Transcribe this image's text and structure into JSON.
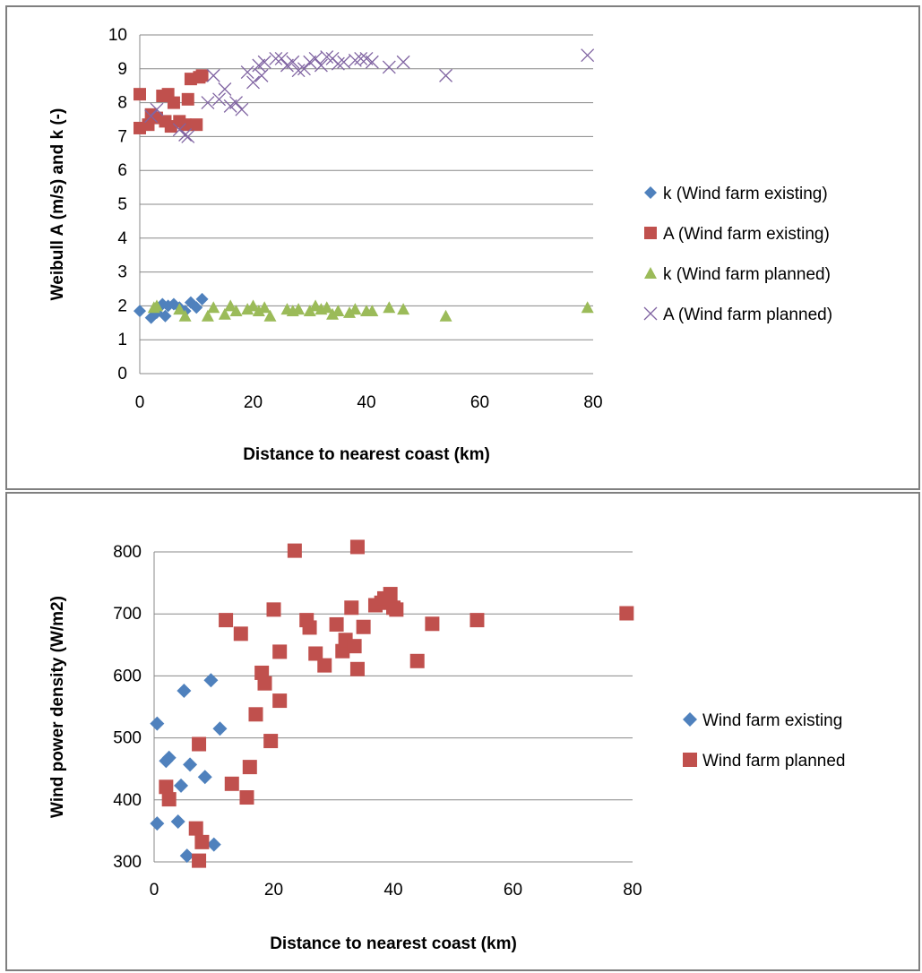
{
  "chart_data": [
    {
      "type": "scatter",
      "title": "",
      "xlabel": "Distance to nearest coast (km)",
      "ylabel": "Weibull A (m/s) and k (-)",
      "xlim": [
        0,
        80
      ],
      "ylim": [
        0,
        10
      ],
      "xticks": [
        "0",
        "20",
        "40",
        "60",
        "80"
      ],
      "yticks": [
        "0",
        "1",
        "2",
        "3",
        "4",
        "5",
        "6",
        "7",
        "8",
        "9",
        "10"
      ],
      "grid": "horizontal",
      "legend": "right",
      "series": [
        {
          "name": "k (Wind farm existing)",
          "marker": "diamond",
          "color": "#4f81bd",
          "points": [
            [
              0,
              1.85
            ],
            [
              2,
              1.65
            ],
            [
              3,
              1.8
            ],
            [
              4,
              2.05
            ],
            [
              4.5,
              1.7
            ],
            [
              5,
              2.0
            ],
            [
              6,
              2.05
            ],
            [
              7,
              1.95
            ],
            [
              8,
              1.85
            ],
            [
              9,
              2.1
            ],
            [
              10,
              1.95
            ],
            [
              11,
              2.2
            ]
          ]
        },
        {
          "name": "A (Wind farm existing)",
          "marker": "square",
          "color": "#c0504d",
          "points": [
            [
              0,
              8.25
            ],
            [
              0,
              7.25
            ],
            [
              1.5,
              7.35
            ],
            [
              2,
              7.65
            ],
            [
              3,
              7.55
            ],
            [
              4,
              8.2
            ],
            [
              4.5,
              7.45
            ],
            [
              5,
              8.25
            ],
            [
              5.5,
              7.3
            ],
            [
              6,
              8.0
            ],
            [
              7,
              7.45
            ],
            [
              8,
              7.35
            ],
            [
              8.5,
              8.1
            ],
            [
              9,
              8.7
            ],
            [
              10,
              7.35
            ],
            [
              10.5,
              8.75
            ],
            [
              11,
              8.8
            ]
          ]
        },
        {
          "name": "k (Wind farm planned)",
          "marker": "triangle",
          "color": "#9bbb59",
          "points": [
            [
              2.5,
              1.95
            ],
            [
              3,
              2.0
            ],
            [
              7,
              1.9
            ],
            [
              8,
              1.7
            ],
            [
              12,
              1.7
            ],
            [
              13,
              1.95
            ],
            [
              15,
              1.75
            ],
            [
              16,
              2.0
            ],
            [
              17,
              1.85
            ],
            [
              19,
              1.9
            ],
            [
              20,
              2.0
            ],
            [
              21,
              1.85
            ],
            [
              22,
              1.95
            ],
            [
              23,
              1.7
            ],
            [
              26,
              1.9
            ],
            [
              27,
              1.85
            ],
            [
              28,
              1.9
            ],
            [
              30,
              1.85
            ],
            [
              31,
              2.0
            ],
            [
              32,
              1.9
            ],
            [
              33,
              1.95
            ],
            [
              34,
              1.75
            ],
            [
              35,
              1.85
            ],
            [
              37,
              1.8
            ],
            [
              38,
              1.9
            ],
            [
              40,
              1.85
            ],
            [
              41,
              1.85
            ],
            [
              44,
              1.95
            ],
            [
              46.5,
              1.9
            ],
            [
              54,
              1.7
            ],
            [
              79,
              1.95
            ]
          ]
        },
        {
          "name": "A (Wind farm planned)",
          "marker": "cross",
          "color": "#8064a2",
          "points": [
            [
              2,
              7.6
            ],
            [
              3,
              7.8
            ],
            [
              7,
              7.2
            ],
            [
              8,
              7.05
            ],
            [
              8.5,
              7.0
            ],
            [
              12,
              8.0
            ],
            [
              13,
              8.8
            ],
            [
              14,
              8.1
            ],
            [
              15,
              8.4
            ],
            [
              16,
              7.9
            ],
            [
              17,
              8.0
            ],
            [
              18,
              7.8
            ],
            [
              19,
              8.9
            ],
            [
              20,
              8.6
            ],
            [
              21,
              9.1
            ],
            [
              21.5,
              8.8
            ],
            [
              22,
              9.2
            ],
            [
              24,
              9.3
            ],
            [
              25,
              9.3
            ],
            [
              26,
              9.1
            ],
            [
              27,
              9.2
            ],
            [
              28,
              8.95
            ],
            [
              29,
              9.0
            ],
            [
              30,
              9.2
            ],
            [
              31,
              9.3
            ],
            [
              32,
              9.1
            ],
            [
              33,
              9.35
            ],
            [
              34,
              9.3
            ],
            [
              35,
              9.15
            ],
            [
              36,
              9.2
            ],
            [
              38,
              9.25
            ],
            [
              39,
              9.3
            ],
            [
              40,
              9.3
            ],
            [
              41,
              9.2
            ],
            [
              44,
              9.05
            ],
            [
              46.5,
              9.2
            ],
            [
              54,
              8.8
            ],
            [
              79,
              9.4
            ]
          ]
        }
      ]
    },
    {
      "type": "scatter",
      "title": "",
      "xlabel": "Distance to nearest coast (km)",
      "ylabel": "Wind power density (W/m2)",
      "xlim": [
        0,
        80
      ],
      "ylim": [
        300,
        800
      ],
      "xticks": [
        "0",
        "20",
        "40",
        "60",
        "80"
      ],
      "yticks": [
        "300",
        "400",
        "500",
        "600",
        "700",
        "800"
      ],
      "grid": "horizontal",
      "legend": "right",
      "series": [
        {
          "name": "Wind farm existing",
          "marker": "diamond",
          "color": "#4f81bd",
          "points": [
            [
              0.5,
              523
            ],
            [
              0.5,
              362
            ],
            [
              2,
              463
            ],
            [
              2.5,
              468
            ],
            [
              4,
              365
            ],
            [
              4.5,
              423
            ],
            [
              5,
              576
            ],
            [
              5.5,
              310
            ],
            [
              6,
              457
            ],
            [
              8.5,
              437
            ],
            [
              9.5,
              593
            ],
            [
              10,
              328
            ],
            [
              11,
              515
            ]
          ]
        },
        {
          "name": "Wind farm planned",
          "marker": "square",
          "color": "#c0504d",
          "points": [
            [
              2,
              421
            ],
            [
              2.5,
              401
            ],
            [
              7,
              354
            ],
            [
              7.5,
              302
            ],
            [
              7.5,
              490
            ],
            [
              8,
              332
            ],
            [
              12,
              690
            ],
            [
              13,
              426
            ],
            [
              14.5,
              668
            ],
            [
              15.5,
              404
            ],
            [
              16,
              453
            ],
            [
              17,
              538
            ],
            [
              18,
              605
            ],
            [
              18.5,
              588
            ],
            [
              19.5,
              495
            ],
            [
              20,
              707
            ],
            [
              21,
              560
            ],
            [
              21,
              639
            ],
            [
              23.5,
              802
            ],
            [
              25.5,
              690
            ],
            [
              26,
              678
            ],
            [
              27,
              636
            ],
            [
              28.5,
              617
            ],
            [
              30.5,
              683
            ],
            [
              31.5,
              640
            ],
            [
              32,
              658
            ],
            [
              33,
              710
            ],
            [
              33.5,
              648
            ],
            [
              34,
              808
            ],
            [
              34,
              611
            ],
            [
              35,
              679
            ],
            [
              37,
              714
            ],
            [
              38,
              718
            ],
            [
              38.5,
              725
            ],
            [
              39.5,
              732
            ],
            [
              40,
              710
            ],
            [
              40.5,
              707
            ],
            [
              44,
              624
            ],
            [
              46.5,
              684
            ],
            [
              54,
              690
            ],
            [
              79,
              701
            ]
          ]
        }
      ]
    }
  ]
}
